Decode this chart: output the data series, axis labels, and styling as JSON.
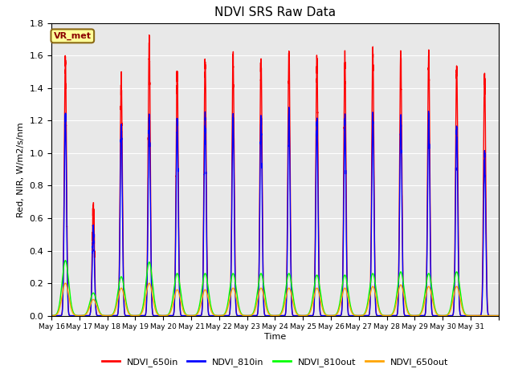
{
  "title": "NDVI SRS Raw Data",
  "ylabel": "Red, NIR, W/m2/s/nm",
  "xlabel": "Time",
  "ylim": [
    0.0,
    1.8
  ],
  "xlim": [
    0,
    16
  ],
  "bg_color": "#e8e8e8",
  "grid_color": "white",
  "annotation_text": "VR_met",
  "annotation_bbox": {
    "facecolor": "#ffff99",
    "edgecolor": "#8b6914",
    "boxstyle": "round,pad=0.3"
  },
  "lines": {
    "NDVI_650in": {
      "color": "red",
      "lw": 1.0
    },
    "NDVI_810in": {
      "color": "blue",
      "lw": 1.0
    },
    "NDVI_810out": {
      "color": "lime",
      "lw": 1.0
    },
    "NDVI_650out": {
      "color": "orange",
      "lw": 1.0
    }
  },
  "xtick_labels": [
    "May 16",
    "May 17",
    "May 18",
    "May 19",
    "May 20",
    "May 21",
    "May 22",
    "May 23",
    "May 24",
    "May 25",
    "May 26",
    "May 27",
    "May 28",
    "May 29",
    "May 30",
    "May 31"
  ],
  "num_days": 16,
  "peaks_650in": [
    1.58,
    0.67,
    1.47,
    1.68,
    1.5,
    1.55,
    1.57,
    1.58,
    1.62,
    1.58,
    1.58,
    1.63,
    1.61,
    1.6,
    1.52,
    1.47
  ],
  "peaks_810in": [
    1.23,
    0.52,
    1.18,
    1.22,
    1.19,
    1.21,
    1.23,
    1.22,
    1.25,
    1.2,
    1.19,
    1.24,
    1.22,
    1.23,
    1.16,
    0.99
  ],
  "peaks_810out": [
    0.34,
    0.14,
    0.24,
    0.33,
    0.26,
    0.26,
    0.26,
    0.26,
    0.26,
    0.25,
    0.25,
    0.26,
    0.27,
    0.26,
    0.27,
    0.0
  ],
  "peaks_650out": [
    0.2,
    0.1,
    0.17,
    0.2,
    0.16,
    0.16,
    0.17,
    0.17,
    0.17,
    0.17,
    0.17,
    0.18,
    0.19,
    0.18,
    0.18,
    0.0
  ],
  "ytick_vals": [
    0.0,
    0.2,
    0.4,
    0.6,
    0.8,
    1.0,
    1.2,
    1.4,
    1.6,
    1.8
  ]
}
